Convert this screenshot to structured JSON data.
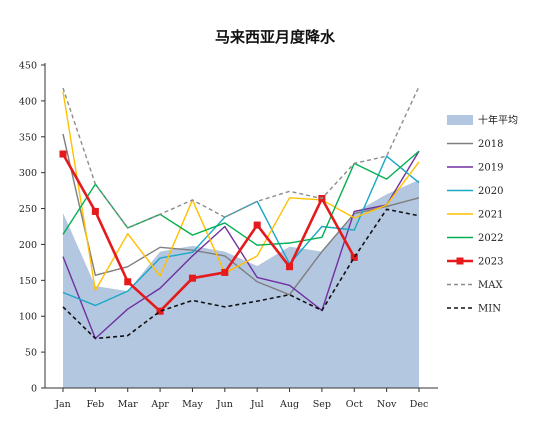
{
  "chart_data": {
    "type": "line",
    "title": "马来西亚月度降水",
    "xlabel": "",
    "ylabel": "",
    "categories": [
      "Jan",
      "Feb",
      "Mar",
      "Apr",
      "May",
      "Jun",
      "Jul",
      "Aug",
      "Sep",
      "Oct",
      "Nov",
      "Dec"
    ],
    "ylim": [
      0,
      450
    ],
    "yticks": [
      0,
      50,
      100,
      150,
      200,
      250,
      300,
      350,
      400,
      450
    ],
    "grid": false,
    "legend_position": "right",
    "area": {
      "name": "十年平均",
      "color": "#b4c7e0",
      "values": [
        244,
        142,
        135,
        190,
        198,
        190,
        170,
        197,
        190,
        244,
        270,
        290
      ]
    },
    "series": [
      {
        "name": "2018",
        "color": "#7f7f7f",
        "style": "solid",
        "width": 1.4,
        "values": [
          354,
          157,
          169,
          196,
          192,
          184,
          148,
          130,
          190,
          243,
          253,
          265
        ]
      },
      {
        "name": "2019",
        "color": "#7030a0",
        "style": "solid",
        "width": 1.4,
        "values": [
          183,
          69,
          110,
          139,
          184,
          225,
          154,
          143,
          108,
          246,
          255,
          330
        ]
      },
      {
        "name": "2020",
        "color": "#1ba7c6",
        "style": "solid",
        "width": 1.4,
        "values": [
          133,
          115,
          135,
          181,
          189,
          238,
          260,
          173,
          225,
          220,
          323,
          286
        ]
      },
      {
        "name": "2021",
        "color": "#ffc000",
        "style": "solid",
        "width": 1.4,
        "values": [
          413,
          136,
          215,
          156,
          262,
          160,
          184,
          265,
          262,
          237,
          255,
          315
        ]
      },
      {
        "name": "2022",
        "color": "#00b050",
        "style": "solid",
        "width": 1.4,
        "values": [
          214,
          284,
          223,
          242,
          213,
          230,
          199,
          202,
          210,
          313,
          291,
          330
        ]
      },
      {
        "name": "2023",
        "color": "#e41a1c",
        "style": "solid",
        "width": 2.6,
        "marker": "square",
        "values": [
          326,
          246,
          148,
          107,
          153,
          161,
          227,
          169,
          264,
          182,
          null,
          null
        ]
      },
      {
        "name": "MAX",
        "color": "#8c8c8c",
        "style": "dashed",
        "width": 1.4,
        "values": [
          418,
          284,
          223,
          242,
          262,
          238,
          260,
          274,
          264,
          313,
          323,
          420
        ]
      },
      {
        "name": "MIN",
        "color": "#111111",
        "style": "dashed",
        "width": 1.6,
        "values": [
          113,
          69,
          73,
          107,
          122,
          113,
          121,
          130,
          108,
          182,
          249,
          240
        ]
      }
    ]
  }
}
